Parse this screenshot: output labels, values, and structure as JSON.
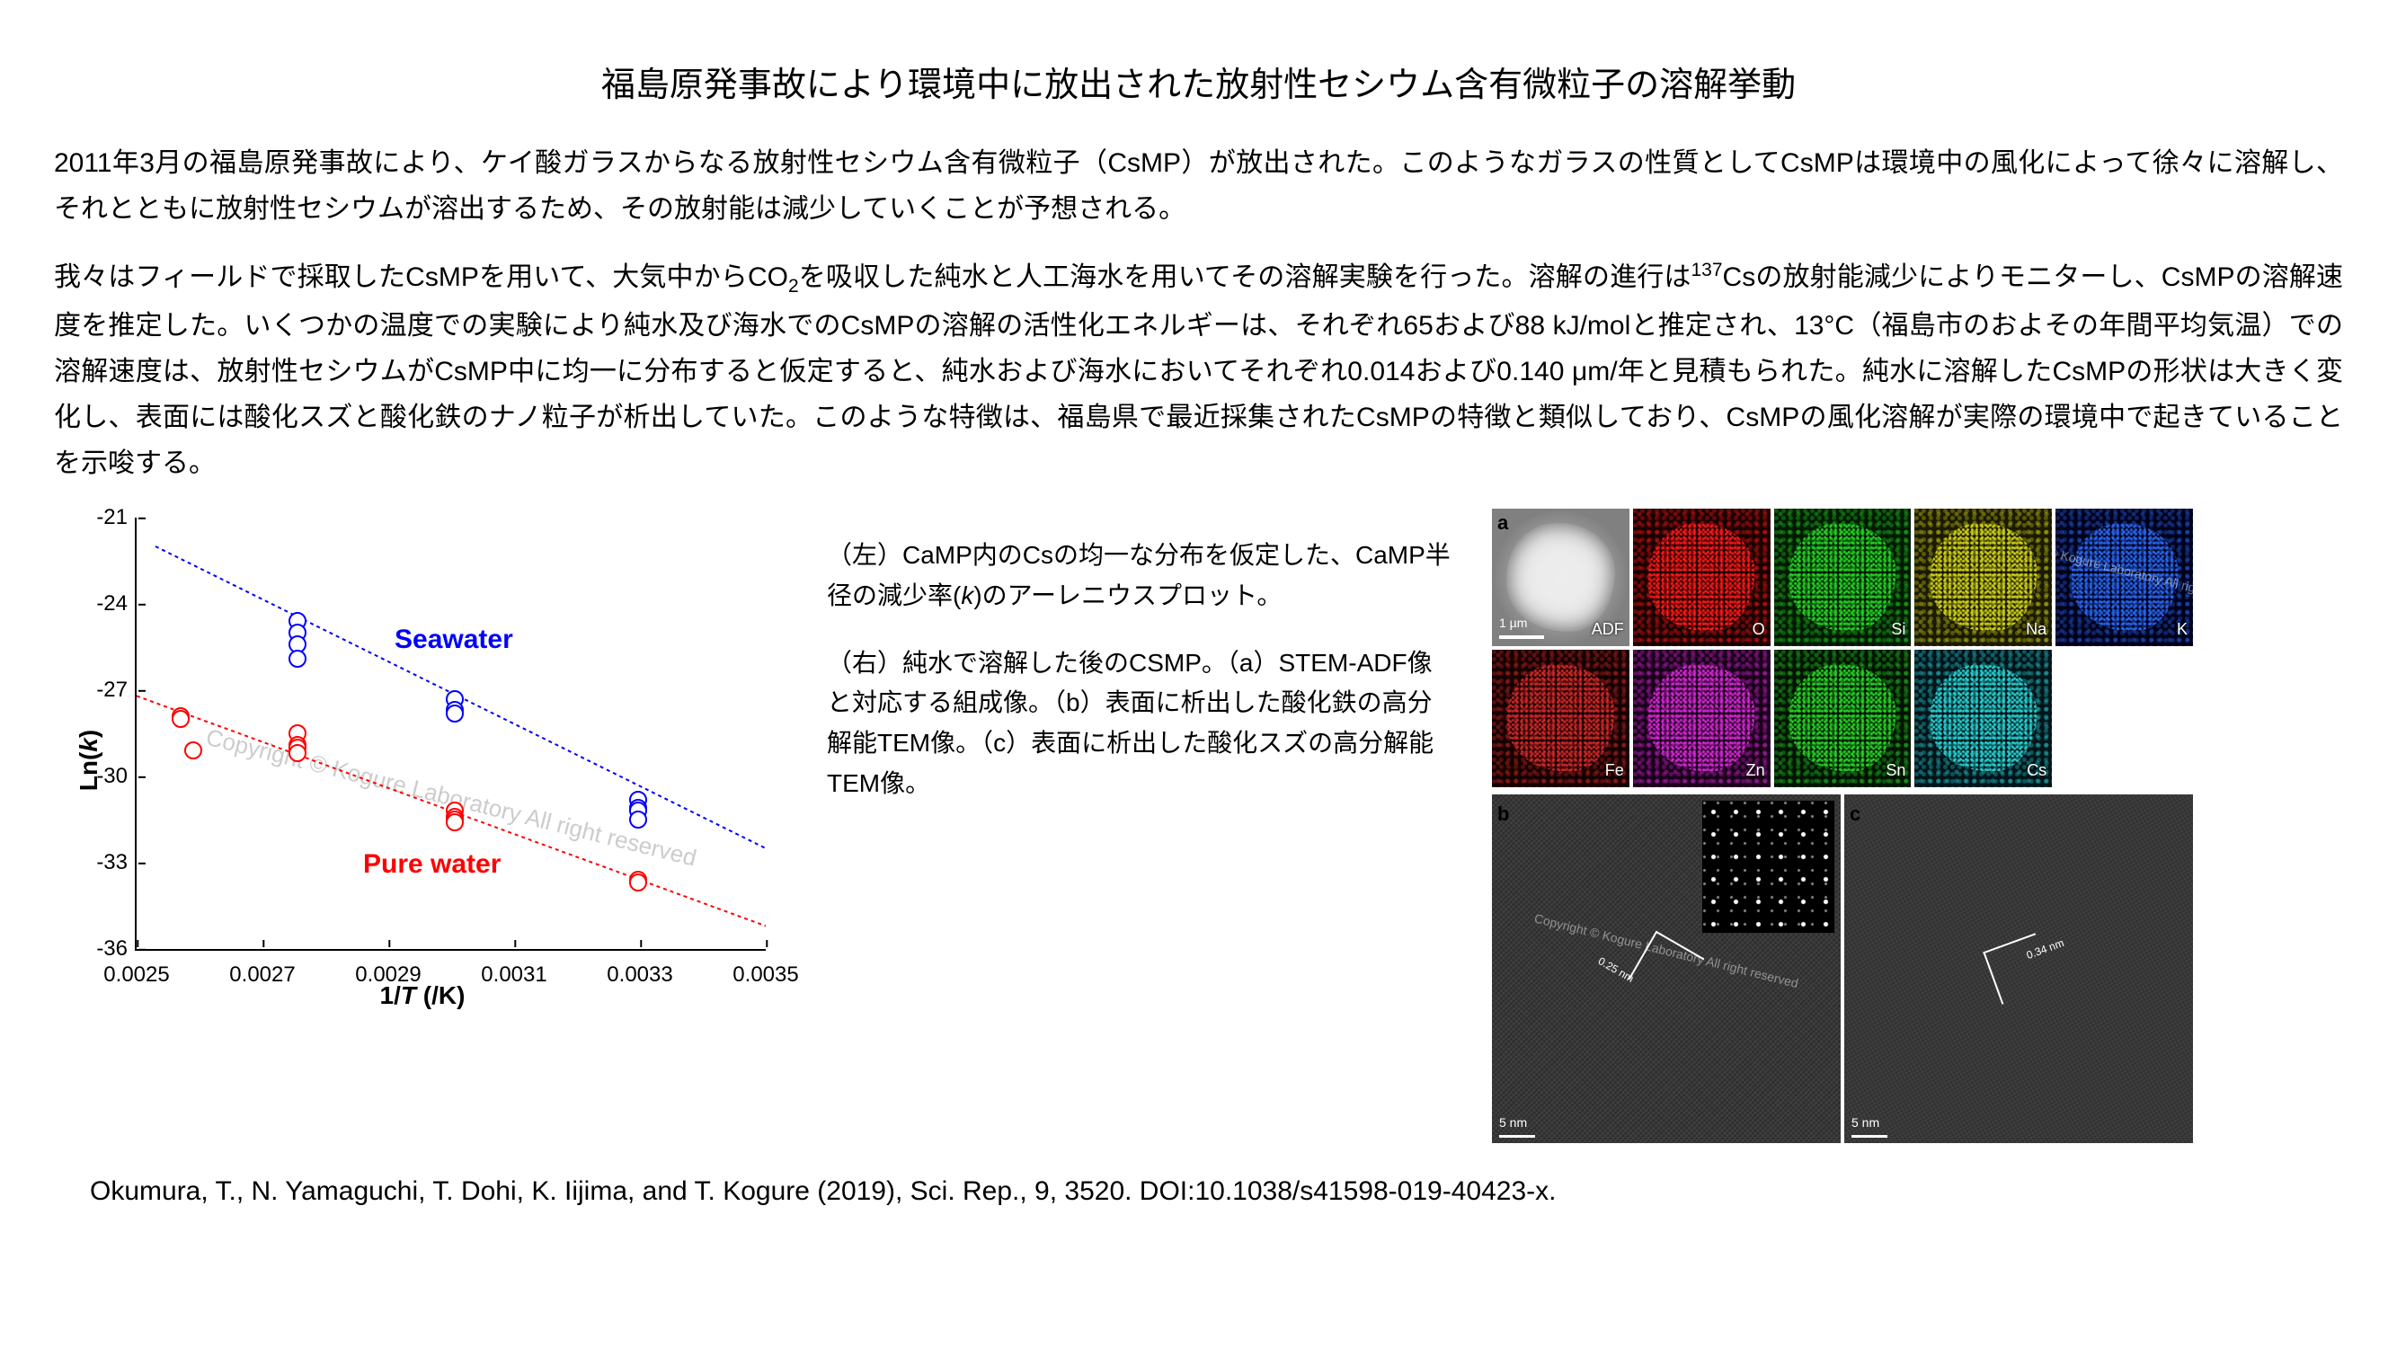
{
  "title": "福島原発事故により環境中に放出された放射性セシウム含有微粒子の溶解挙動",
  "body": {
    "p1": "2011年3月の福島原発事故により、ケイ酸ガラスからなる放射性セシウム含有微粒子（CsMP）が放出された。このようなガラスの性質としてCsMPは環境中の風化によって徐々に溶解し、それとともに放射性セシウムが溶出するため、その放射能は減少していくことが予想される。",
    "p2_a": "我々はフィールドで採取したCsMPを用いて、大気中からCO",
    "p2_b": "を吸収した純水と人工海水を用いてその溶解実験を行った。溶解の進行は",
    "p2_c": "Csの放射能減少によりモニターし、CsMPの溶解速度を推定した。いくつかの温度での実験により純水及び海水でのCsMPの溶解の活性化エネルギーは、それぞれ65および88 kJ/molと推定され、13°C（福島市のおよその年間平均気温）での溶解速度は、放射性セシウムがCsMP中に均一に分布すると仮定すると、純水および海水においてそれぞれ0.014および0.140 μm/年と見積もられた。純水に溶解したCsMPの形状は大きく変化し、表面には酸化スズと酸化鉄のナノ粒子が析出していた。このような特徴は、福島県で最近採集されたCsMPの特徴と類似しており、CsMPの風化溶解が実際の環境中で起きていることを示唆する。",
    "sub_co2": "2",
    "sup_cs": "137"
  },
  "captions": {
    "left_a": "（左）CaMP内のCsの均一な分布を仮定した、CaMP半径の減少率(",
    "left_k": "k",
    "left_b": ")のアーレニウスプロット。",
    "right": "（右）純水で溶解した後のCSMP。（a）STEM-ADF像と対応する組成像。（b）表面に析出した酸化鉄の高分解能TEM像。（c）表面に析出した酸化スズの高分解能TEM像。"
  },
  "citation": "Okumura, T., N. Yamaguchi, T. Dohi, K. Iijima, and T. Kogure (2019), Sci. Rep., 9, 3520. DOI:10.1038/s41598-019-40423-x.",
  "watermark": "Copyright © Kogure Laboratory All right reserved",
  "chart": {
    "type": "scatter",
    "xlabel_a": "1/",
    "xlabel_T": "T",
    "xlabel_b": " (/K)",
    "ylabel_a": "Ln(",
    "ylabel_k": "k",
    "ylabel_b": ")",
    "xlim": [
      0.0025,
      0.0035
    ],
    "ylim": [
      -36,
      -21
    ],
    "xticks": [
      "0.0025",
      "0.0027",
      "0.0029",
      "0.0031",
      "0.0033",
      "0.0035"
    ],
    "yticks": [
      "-21",
      "-24",
      "-27",
      "-30",
      "-33",
      "-36"
    ],
    "series": [
      {
        "name": "Seawater",
        "label": "Seawater",
        "color": "#0000ff",
        "label_pos": {
          "x": 0.00291,
          "y": -24.5
        },
        "fit": {
          "x1": 0.00253,
          "y1": -22.0,
          "x2": 0.0035,
          "y2": -32.5,
          "dash": "4,4"
        },
        "points": [
          {
            "x": 0.002755,
            "y": -24.6
          },
          {
            "x": 0.002755,
            "y": -25.0
          },
          {
            "x": 0.002755,
            "y": -25.4
          },
          {
            "x": 0.002755,
            "y": -25.9
          },
          {
            "x": 0.003005,
            "y": -27.3
          },
          {
            "x": 0.003005,
            "y": -27.7
          },
          {
            "x": 0.003005,
            "y": -27.8
          },
          {
            "x": 0.003297,
            "y": -30.8
          },
          {
            "x": 0.003297,
            "y": -31.1
          },
          {
            "x": 0.003297,
            "y": -31.2
          },
          {
            "x": 0.003297,
            "y": -31.5
          }
        ]
      },
      {
        "name": "Pure water",
        "label": "Pure water",
        "color": "#ff0000",
        "label_pos": {
          "x": 0.00286,
          "y": -32.3
        },
        "fit": {
          "x1": 0.0025,
          "y1": -27.2,
          "x2": 0.0035,
          "y2": -35.2,
          "dash": "4,4"
        },
        "points": [
          {
            "x": 0.00257,
            "y": -27.9
          },
          {
            "x": 0.00257,
            "y": -28.0
          },
          {
            "x": 0.00259,
            "y": -29.1
          },
          {
            "x": 0.002755,
            "y": -28.5
          },
          {
            "x": 0.002755,
            "y": -28.9
          },
          {
            "x": 0.002755,
            "y": -29.0
          },
          {
            "x": 0.002755,
            "y": -29.2
          },
          {
            "x": 0.003005,
            "y": -31.2
          },
          {
            "x": 0.003005,
            "y": -31.4
          },
          {
            "x": 0.003005,
            "y": -31.5
          },
          {
            "x": 0.003005,
            "y": -31.6
          },
          {
            "x": 0.003297,
            "y": -33.6
          },
          {
            "x": 0.003297,
            "y": -33.7
          }
        ]
      }
    ]
  },
  "right_panel": {
    "tag_a": "a",
    "tag_b": "b",
    "tag_c": "c",
    "adf_scalebar": "1 µm",
    "tem_scalebar": "5 nm",
    "maps": [
      {
        "label": "ADF",
        "bg": "#9a9a9a",
        "fg": "#e5e5e5"
      },
      {
        "label": "O",
        "bg": "#1a0000",
        "fg": "#ff1a1a"
      },
      {
        "label": "Si",
        "bg": "#001a00",
        "fg": "#27d627"
      },
      {
        "label": "Na",
        "bg": "#1a1a00",
        "fg": "#d6d61a"
      },
      {
        "label": "K",
        "bg": "#00001a",
        "fg": "#2a6af5"
      },
      {
        "label": "Fe",
        "bg": "#140000",
        "fg": "#d42a2a"
      },
      {
        "label": "Zn",
        "bg": "#1a001a",
        "fg": "#d62ad6"
      },
      {
        "label": "Sn",
        "bg": "#001400",
        "fg": "#2ad62a"
      },
      {
        "label": "Cs",
        "bg": "#00141a",
        "fg": "#2ad6d6"
      }
    ],
    "b_spacing": "0.25 nm",
    "c_spacing": "0.34 nm"
  }
}
